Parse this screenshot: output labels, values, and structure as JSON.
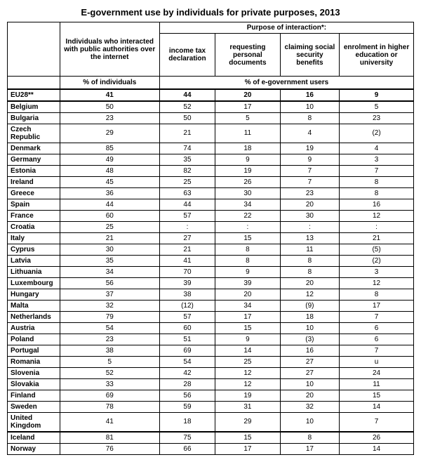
{
  "title": "E-government use by individuals for private purposes, 2013",
  "headers": {
    "col1": "Individuals who interacted with public authorities over the internet",
    "group": "Purpose of interaction*:",
    "purpose1": "income tax declaration",
    "purpose2": "requesting personal documents",
    "purpose3": "claiming social security benefits",
    "purpose4": "enrolment in higher education or university",
    "sub1": "% of individuals",
    "sub2": "% of e-government users"
  },
  "summary": {
    "country": "EU28**",
    "v1": "41",
    "v2": "44",
    "v3": "20",
    "v4": "16",
    "v5": "9"
  },
  "block1": [
    {
      "country": "Belgium",
      "v1": "50",
      "v2": "52",
      "v3": "17",
      "v4": "10",
      "v5": "5"
    },
    {
      "country": "Bulgaria",
      "v1": "23",
      "v2": "50",
      "v3": "5",
      "v4": "8",
      "v5": "23"
    },
    {
      "country": "Czech Republic",
      "v1": "29",
      "v2": "21",
      "v3": "11",
      "v4": "4",
      "v5": "(2)"
    },
    {
      "country": "Denmark",
      "v1": "85",
      "v2": "74",
      "v3": "18",
      "v4": "19",
      "v5": "4"
    },
    {
      "country": "Germany",
      "v1": "49",
      "v2": "35",
      "v3": "9",
      "v4": "9",
      "v5": "3"
    },
    {
      "country": "Estonia",
      "v1": "48",
      "v2": "82",
      "v3": "19",
      "v4": "7",
      "v5": "7"
    },
    {
      "country": "Ireland",
      "v1": "45",
      "v2": "25",
      "v3": "26",
      "v4": "7",
      "v5": "8"
    },
    {
      "country": "Greece",
      "v1": "36",
      "v2": "63",
      "v3": "30",
      "v4": "23",
      "v5": "8"
    },
    {
      "country": "Spain",
      "v1": "44",
      "v2": "44",
      "v3": "34",
      "v4": "20",
      "v5": "16"
    },
    {
      "country": "France",
      "v1": "60",
      "v2": "57",
      "v3": "22",
      "v4": "30",
      "v5": "12"
    },
    {
      "country": "Croatia",
      "v1": "25",
      "v2": ":",
      "v3": ":",
      "v4": ":",
      "v5": ":"
    },
    {
      "country": "Italy",
      "v1": "21",
      "v2": "27",
      "v3": "15",
      "v4": "13",
      "v5": "21"
    },
    {
      "country": "Cyprus",
      "v1": "30",
      "v2": "21",
      "v3": "8",
      "v4": "11",
      "v5": "(5)"
    },
    {
      "country": "Latvia",
      "v1": "35",
      "v2": "41",
      "v3": "8",
      "v4": "8",
      "v5": "(2)"
    },
    {
      "country": "Lithuania",
      "v1": "34",
      "v2": "70",
      "v3": "9",
      "v4": "8",
      "v5": "3"
    },
    {
      "country": "Luxembourg",
      "v1": "56",
      "v2": "39",
      "v3": "39",
      "v4": "20",
      "v5": "12"
    },
    {
      "country": "Hungary",
      "v1": "37",
      "v2": "38",
      "v3": "20",
      "v4": "12",
      "v5": "8"
    },
    {
      "country": "Malta",
      "v1": "32",
      "v2": "(12)",
      "v3": "34",
      "v4": "(9)",
      "v5": "17"
    },
    {
      "country": "Netherlands",
      "v1": "79",
      "v2": "57",
      "v3": "17",
      "v4": "18",
      "v5": "7"
    },
    {
      "country": "Austria",
      "v1": "54",
      "v2": "60",
      "v3": "15",
      "v4": "10",
      "v5": "6"
    },
    {
      "country": "Poland",
      "v1": "23",
      "v2": "51",
      "v3": "9",
      "v4": "(3)",
      "v5": "6"
    },
    {
      "country": "Portugal",
      "v1": "38",
      "v2": "69",
      "v3": "14",
      "v4": "16",
      "v5": "7"
    },
    {
      "country": "Romania",
      "v1": "5",
      "v2": "54",
      "v3": "25",
      "v4": "27",
      "v5": "u"
    },
    {
      "country": "Slovenia",
      "v1": "52",
      "v2": "42",
      "v3": "12",
      "v4": "27",
      "v5": "24"
    },
    {
      "country": "Slovakia",
      "v1": "33",
      "v2": "28",
      "v3": "12",
      "v4": "10",
      "v5": "11"
    },
    {
      "country": "Finland",
      "v1": "69",
      "v2": "56",
      "v3": "19",
      "v4": "20",
      "v5": "15"
    },
    {
      "country": "Sweden",
      "v1": "78",
      "v2": "59",
      "v3": "31",
      "v4": "32",
      "v5": "14"
    },
    {
      "country": "United Kingdom",
      "v1": "41",
      "v2": "18",
      "v3": "29",
      "v4": "10",
      "v5": "7"
    }
  ],
  "block2": [
    {
      "country": "Iceland",
      "v1": "81",
      "v2": "75",
      "v3": "15",
      "v4": "8",
      "v5": "26"
    },
    {
      "country": "Norway",
      "v1": "76",
      "v2": "66",
      "v3": "17",
      "v4": "17",
      "v5": "14"
    }
  ]
}
